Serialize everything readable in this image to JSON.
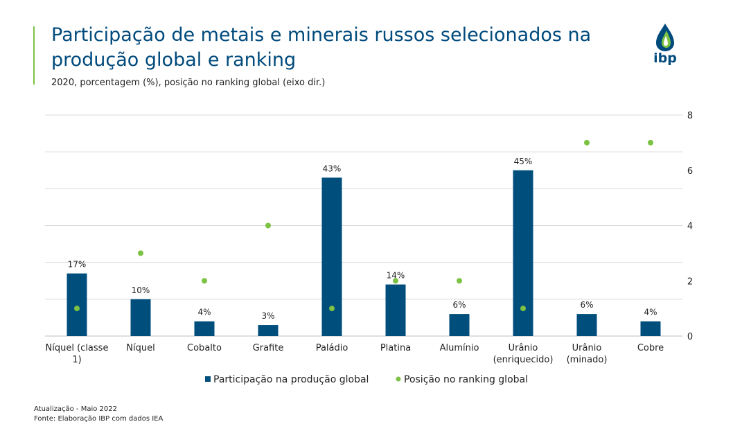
{
  "header": {
    "title": "Participação de metais e minerais russos selecionados na produção global e ranking",
    "subtitle": "2020, porcentagem (%), posição no ranking global (eixo dir.)"
  },
  "logo": {
    "text": "ibp",
    "icon": "drop-logo-icon"
  },
  "footer": {
    "update": "Atualização - Maio 2022",
    "source": "Fonte: Elaboração IBP com dados IEA"
  },
  "colors": {
    "bar": "#004e7c",
    "dot": "#7cc243",
    "accent": "#7cc243",
    "title": "#004a7c"
  },
  "chart_data": {
    "type": "bar",
    "categories": [
      [
        "Níquel (classe",
        "1)"
      ],
      [
        "Níquel"
      ],
      [
        "Cobalto"
      ],
      [
        "Grafite"
      ],
      [
        "Paládio"
      ],
      [
        "Platina"
      ],
      [
        "Alumínio"
      ],
      [
        "Urânio",
        "(enriquecido)"
      ],
      [
        "Urânio",
        "(minado)"
      ],
      [
        "Cobre"
      ]
    ],
    "series": [
      {
        "name": "Participação na produção global",
        "kind": "bar",
        "axis": "left",
        "values": [
          17,
          10,
          4,
          3,
          43,
          14,
          6,
          45,
          6,
          4
        ],
        "labels": [
          "17%",
          "10%",
          "4%",
          "3%",
          "43%",
          "14%",
          "6%",
          "45%",
          "6%",
          "4%"
        ]
      },
      {
        "name": "Posição no ranking global",
        "kind": "dot",
        "axis": "right",
        "values": [
          1,
          3,
          2,
          4,
          1,
          2,
          2,
          1,
          7,
          7
        ]
      }
    ],
    "y_left": {
      "min": 0,
      "max": 60,
      "gridlines": 6
    },
    "y_right": {
      "min": 0,
      "max": 8,
      "ticks": [
        0,
        2,
        4,
        6,
        8
      ]
    },
    "legend_position": "bottom-center"
  }
}
